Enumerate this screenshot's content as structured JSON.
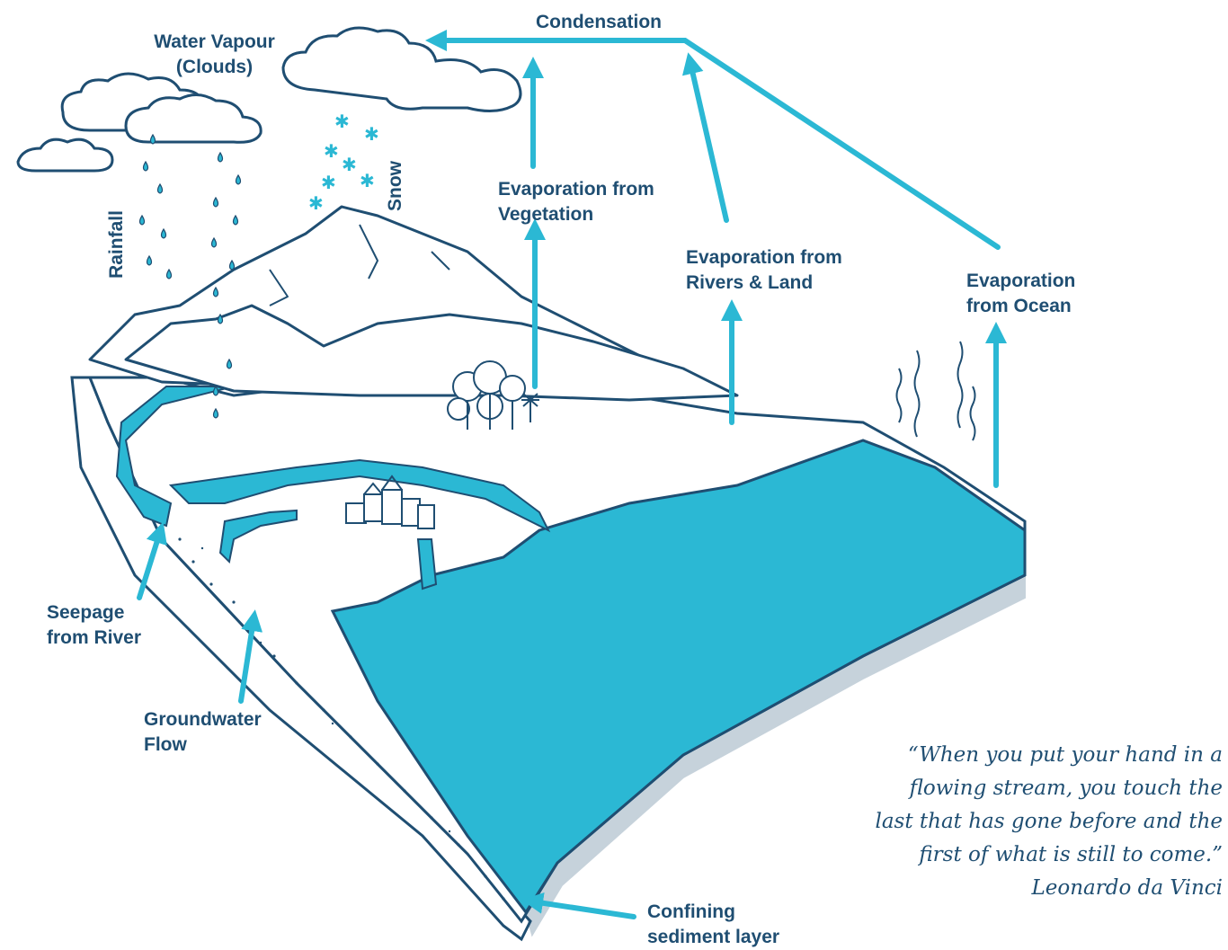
{
  "labels": {
    "condensation": "Condensation",
    "water_vapour": [
      "Water Vapour",
      "(Clouds)"
    ],
    "rainfall": "Rainfall",
    "snow": "Snow",
    "evap_vegetation": [
      "Evaporation from",
      "Vegetation"
    ],
    "evap_rivers": [
      "Evaporation from",
      "Rivers & Land"
    ],
    "evap_ocean": [
      "Evaporation",
      "from Ocean"
    ],
    "seepage": [
      "Seepage",
      "from River"
    ],
    "groundwater": [
      "Groundwater",
      "Flow"
    ],
    "confining": [
      "Confining",
      "sediment layer"
    ]
  },
  "quote": {
    "lines": [
      "“When you put your hand in a",
      "flowing stream, you touch the",
      "last that has gone before and the",
      "first of what is still to come.”"
    ],
    "author": "Leonardo da Vinci"
  },
  "colors": {
    "water": "#2bb8d4",
    "outline": "#1f4e72",
    "arrow": "#2bb8d4",
    "text": "#1f4e72"
  }
}
